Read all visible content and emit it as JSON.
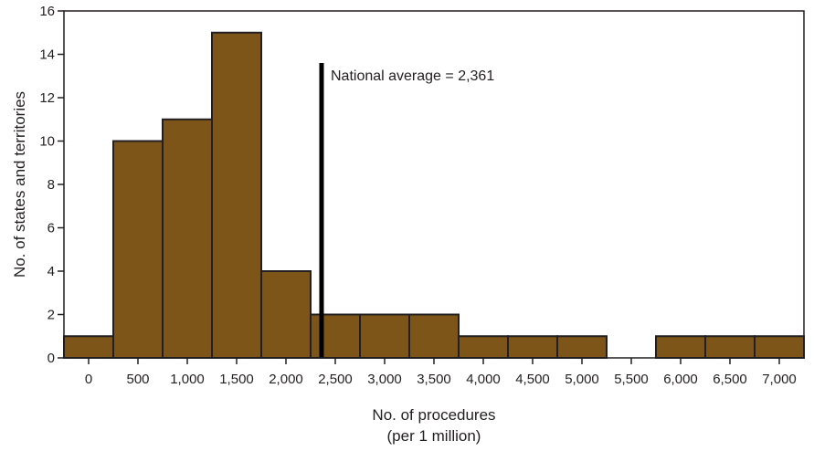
{
  "chart_data": {
    "type": "bar",
    "categories": [
      "0",
      "500",
      "1,000",
      "1,500",
      "2,000",
      "2,500",
      "3,000",
      "3,500",
      "4,000",
      "4,500",
      "5,000",
      "5,500",
      "6,000",
      "6,500",
      "7,000"
    ],
    "values": [
      1,
      10,
      11,
      15,
      4,
      2,
      2,
      2,
      1,
      1,
      1,
      0,
      1,
      1,
      1
    ],
    "xlabel_line1": "No. of procedures",
    "xlabel_line2": "(per 1 million)",
    "ylabel": "No. of states and territories",
    "ylim": [
      0,
      16
    ],
    "yticks": [
      0,
      2,
      4,
      6,
      8,
      10,
      12,
      14,
      16
    ],
    "xlim": [
      -250,
      7250
    ],
    "bin_width": 500,
    "grid": false,
    "bar_color": "#7d5519",
    "bar_edge_color": "#231f20",
    "reference_line": {
      "x": 2361,
      "y_top": 13.6,
      "label": "National average = 2,361"
    }
  }
}
